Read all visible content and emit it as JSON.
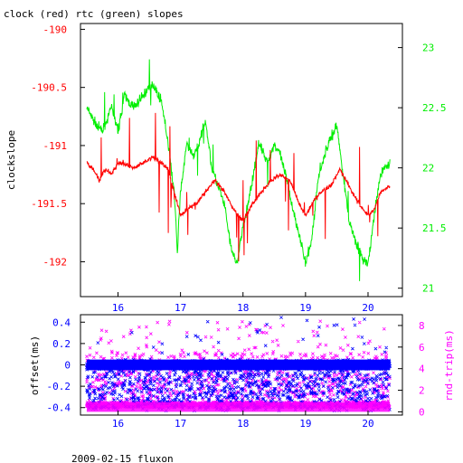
{
  "page_title": "clock (red) rtc (green) slopes",
  "footer": "2009-02-15 fluxon",
  "colors": {
    "clock": "#ff0000",
    "rtc": "#00ee00",
    "offset": "#0000ff",
    "rndtrip": "#ff00ff",
    "axis": "#000000",
    "bg": "#ffffff"
  },
  "chart_data": [
    {
      "type": "line",
      "title": "clock (red) rtc (green) slopes",
      "xlabel": "",
      "xlim": [
        15.4,
        20.55
      ],
      "x_ticks": [
        16,
        17,
        18,
        19,
        20
      ],
      "grid": false,
      "y_left": {
        "label": "clockslope",
        "lim": [
          -192.3,
          -189.95
        ],
        "ticks": [
          -190,
          -190.5,
          -191,
          -191.5,
          -192
        ],
        "tick_color": "#ff0000"
      },
      "y_right": {
        "label": "",
        "lim": [
          20.93,
          23.2
        ],
        "ticks": [
          23,
          22.5,
          22,
          21.5,
          21
        ],
        "tick_color": "#00ee00"
      },
      "series": [
        {
          "color": "#00ee00",
          "axis": "right",
          "x": [
            15.5,
            15.6,
            15.75,
            15.9,
            16.0,
            16.1,
            16.25,
            16.4,
            16.55,
            16.7,
            16.8,
            16.9,
            16.95,
            17.0,
            17.1,
            17.2,
            17.3,
            17.4,
            17.5,
            17.6,
            17.7,
            17.8,
            17.9,
            18.0,
            18.1,
            18.25,
            18.4,
            18.5,
            18.6,
            18.7,
            18.8,
            18.9,
            19.0,
            19.1,
            19.2,
            19.3,
            19.4,
            19.5,
            19.6,
            19.7,
            19.8,
            19.9,
            20.0,
            20.1,
            20.2,
            20.35
          ],
          "y": [
            22.5,
            22.4,
            22.3,
            22.5,
            22.3,
            22.6,
            22.5,
            22.6,
            22.7,
            22.55,
            22.2,
            21.8,
            21.3,
            21.8,
            22.2,
            22.1,
            22.2,
            22.4,
            22.0,
            21.85,
            21.7,
            21.35,
            21.2,
            21.5,
            21.75,
            22.2,
            22.05,
            22.2,
            22.1,
            21.9,
            21.65,
            21.45,
            21.2,
            21.4,
            21.9,
            22.1,
            22.25,
            22.35,
            21.95,
            21.55,
            21.4,
            21.25,
            21.2,
            21.6,
            21.95,
            22.05
          ]
        },
        {
          "color": "#ff0000",
          "axis": "left",
          "x": [
            15.5,
            15.6,
            15.7,
            15.8,
            15.9,
            16.0,
            16.1,
            16.25,
            16.4,
            16.55,
            16.7,
            16.8,
            16.9,
            17.0,
            17.1,
            17.25,
            17.4,
            17.55,
            17.7,
            17.85,
            18.0,
            18.15,
            18.3,
            18.45,
            18.6,
            18.75,
            18.9,
            19.0,
            19.1,
            19.25,
            19.4,
            19.55,
            19.7,
            19.85,
            20.0,
            20.1,
            20.2,
            20.35
          ],
          "y": [
            -191.15,
            -191.2,
            -191.3,
            -191.2,
            -191.25,
            -191.15,
            -191.15,
            -191.2,
            -191.15,
            -191.1,
            -191.15,
            -191.2,
            -191.4,
            -191.6,
            -191.55,
            -191.5,
            -191.4,
            -191.3,
            -191.4,
            -191.55,
            -191.65,
            -191.5,
            -191.4,
            -191.3,
            -191.25,
            -191.3,
            -191.5,
            -191.6,
            -191.5,
            -191.4,
            -191.35,
            -191.2,
            -191.35,
            -191.5,
            -191.6,
            -191.55,
            -191.4,
            -191.35
          ]
        }
      ]
    },
    {
      "type": "scatter",
      "xlabel": "",
      "xlim": [
        15.4,
        20.55
      ],
      "x_ticks": [
        16,
        17,
        18,
        19,
        20
      ],
      "grid": false,
      "y_left": {
        "label": "offset(ms)",
        "lim": [
          -0.47,
          0.47
        ],
        "ticks": [
          0.4,
          0.2,
          0,
          -0.2,
          -0.4
        ],
        "tick_color": "#0000ff"
      },
      "y_right": {
        "label": "rnd-trip(ms)",
        "lim": [
          -0.3,
          9.0
        ],
        "ticks": [
          8,
          6,
          4,
          2,
          0
        ],
        "tick_color": "#ff00ff"
      },
      "series": [
        {
          "color": "#0000ff",
          "marker": "x",
          "axis": "left",
          "x": [
            15.5,
            16.0,
            16.5,
            17.0,
            17.5,
            18.0,
            18.5,
            19.0,
            19.5,
            20.0,
            20.35
          ],
          "y": [
            0.0,
            0.0,
            0.0,
            0.0,
            0.0,
            0.0,
            0.0,
            0.0,
            0.0,
            0.0,
            0.0
          ]
        },
        {
          "color": "#ff00ff",
          "marker": "x",
          "axis": "right",
          "x": [
            15.5,
            16.0,
            16.5,
            17.0,
            17.5,
            18.0,
            18.5,
            19.0,
            19.5,
            20.0,
            20.35
          ],
          "y": [
            0.4,
            0.4,
            0.4,
            0.4,
            0.4,
            0.4,
            0.4,
            0.4,
            0.4,
            0.4,
            0.4
          ]
        }
      ]
    }
  ]
}
